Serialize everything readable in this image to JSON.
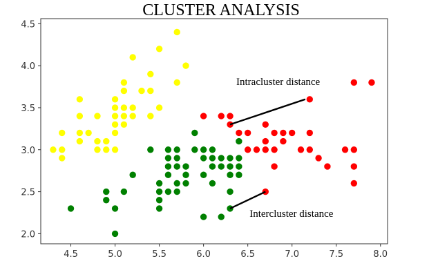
{
  "chart_data": {
    "type": "scatter",
    "title": "CLUSTER  ANALYSIS",
    "xlabel": "",
    "ylabel": "",
    "xlim": [
      4.16,
      8.08
    ],
    "ylim": [
      1.88,
      4.56
    ],
    "xticks": [
      "4.5",
      "5.0",
      "5.5",
      "6.0",
      "6.5",
      "7.0",
      "7.5",
      "8.0"
    ],
    "yticks": [
      "2.0",
      "2.5",
      "3.0",
      "3.5",
      "4.0",
      "4.5"
    ],
    "grid": false,
    "series": [
      {
        "color": "#ffff00",
        "points": [
          [
            4.3,
            3.0
          ],
          [
            4.4,
            3.0
          ],
          [
            4.4,
            2.9
          ],
          [
            4.4,
            3.2
          ],
          [
            4.5,
            2.3
          ],
          [
            4.6,
            3.1
          ],
          [
            4.6,
            3.2
          ],
          [
            4.6,
            3.4
          ],
          [
            4.6,
            3.6
          ],
          [
            4.7,
            3.2
          ],
          [
            4.8,
            3.0
          ],
          [
            4.8,
            3.1
          ],
          [
            4.8,
            3.4
          ],
          [
            4.9,
            3.0
          ],
          [
            4.9,
            3.1
          ],
          [
            5.0,
            3.0
          ],
          [
            5.0,
            3.2
          ],
          [
            5.0,
            3.3
          ],
          [
            5.0,
            3.4
          ],
          [
            5.0,
            3.5
          ],
          [
            5.0,
            3.6
          ],
          [
            5.1,
            3.3
          ],
          [
            5.1,
            3.4
          ],
          [
            5.1,
            3.5
          ],
          [
            5.1,
            3.7
          ],
          [
            5.1,
            3.8
          ],
          [
            5.2,
            3.4
          ],
          [
            5.2,
            3.5
          ],
          [
            5.2,
            4.1
          ],
          [
            5.3,
            3.7
          ],
          [
            5.4,
            3.4
          ],
          [
            5.4,
            3.7
          ],
          [
            5.4,
            3.9
          ],
          [
            5.5,
            3.5
          ],
          [
            5.5,
            4.2
          ],
          [
            5.7,
            3.8
          ],
          [
            5.7,
            4.4
          ],
          [
            5.8,
            4.0
          ]
        ]
      },
      {
        "color": "#008000",
        "points": [
          [
            4.5,
            2.3
          ],
          [
            4.9,
            2.4
          ],
          [
            4.9,
            2.5
          ],
          [
            5.0,
            2.0
          ],
          [
            5.0,
            2.3
          ],
          [
            5.1,
            2.5
          ],
          [
            5.2,
            2.7
          ],
          [
            5.4,
            3.0
          ],
          [
            5.5,
            2.3
          ],
          [
            5.5,
            2.4
          ],
          [
            5.5,
            2.5
          ],
          [
            5.5,
            2.6
          ],
          [
            5.6,
            2.5
          ],
          [
            5.6,
            2.7
          ],
          [
            5.6,
            2.8
          ],
          [
            5.6,
            2.9
          ],
          [
            5.6,
            3.0
          ],
          [
            5.7,
            2.5
          ],
          [
            5.7,
            2.6
          ],
          [
            5.7,
            2.8
          ],
          [
            5.7,
            2.9
          ],
          [
            5.7,
            3.0
          ],
          [
            5.8,
            2.6
          ],
          [
            5.8,
            2.7
          ],
          [
            5.8,
            2.8
          ],
          [
            5.9,
            3.0
          ],
          [
            5.9,
            3.2
          ],
          [
            6.0,
            2.2
          ],
          [
            6.0,
            2.7
          ],
          [
            6.0,
            2.9
          ],
          [
            6.0,
            3.0
          ],
          [
            6.1,
            2.6
          ],
          [
            6.1,
            2.8
          ],
          [
            6.1,
            2.9
          ],
          [
            6.1,
            3.0
          ],
          [
            6.2,
            2.2
          ],
          [
            6.2,
            2.8
          ],
          [
            6.2,
            2.9
          ],
          [
            6.3,
            2.3
          ],
          [
            6.3,
            2.5
          ],
          [
            6.3,
            2.7
          ],
          [
            6.3,
            2.8
          ],
          [
            6.3,
            2.9
          ],
          [
            6.4,
            2.7
          ],
          [
            6.4,
            2.8
          ],
          [
            6.4,
            2.9
          ],
          [
            6.4,
            3.1
          ]
        ]
      },
      {
        "color": "#ff0000",
        "points": [
          [
            6.0,
            3.4
          ],
          [
            6.2,
            3.4
          ],
          [
            6.3,
            3.3
          ],
          [
            6.3,
            3.4
          ],
          [
            6.4,
            3.2
          ],
          [
            6.5,
            3.0
          ],
          [
            6.5,
            3.2
          ],
          [
            6.6,
            3.0
          ],
          [
            6.7,
            3.0
          ],
          [
            6.7,
            3.1
          ],
          [
            6.7,
            3.3
          ],
          [
            6.7,
            2.5
          ],
          [
            6.8,
            2.8
          ],
          [
            6.8,
            3.0
          ],
          [
            6.8,
            3.2
          ],
          [
            6.9,
            3.1
          ],
          [
            6.9,
            3.2
          ],
          [
            7.0,
            3.2
          ],
          [
            7.1,
            3.0
          ],
          [
            7.2,
            3.0
          ],
          [
            7.2,
            3.2
          ],
          [
            7.2,
            3.6
          ],
          [
            7.3,
            2.9
          ],
          [
            7.4,
            2.8
          ],
          [
            7.6,
            3.0
          ],
          [
            7.7,
            2.6
          ],
          [
            7.7,
            2.8
          ],
          [
            7.7,
            3.0
          ],
          [
            7.7,
            3.8
          ],
          [
            7.9,
            3.8
          ]
        ]
      }
    ],
    "annotations": [
      {
        "text": "Intracluster  distance",
        "from": [
          6.3,
          3.3
        ],
        "to": [
          7.15,
          3.6
        ],
        "text_at": [
          6.37,
          3.77
        ]
      },
      {
        "text": "Intercluster distance",
        "from": [
          6.3,
          2.3
        ],
        "to": [
          6.7,
          2.5
        ],
        "text_at": [
          6.52,
          2.2
        ]
      }
    ]
  }
}
